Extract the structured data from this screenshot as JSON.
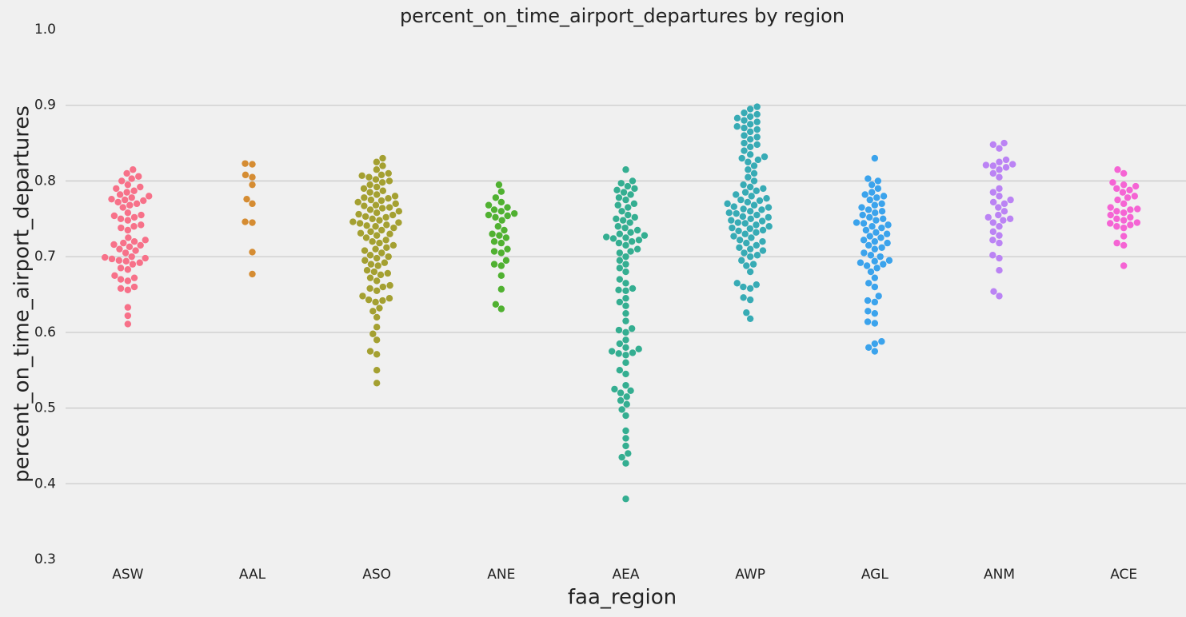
{
  "chart_data": {
    "type": "swarm",
    "title": "percent_on_time_airport_departures by region",
    "xlabel": "faa_region",
    "ylabel": "percent_on_time_airport_departures",
    "categories": [
      "ASW",
      "AAL",
      "ASO",
      "ANE",
      "AEA",
      "AWP",
      "AGL",
      "ANM",
      "ACE"
    ],
    "colors": [
      "#f77189",
      "#d58c32",
      "#a4a031",
      "#50b131",
      "#34ae91",
      "#37abb5",
      "#3ba3ec",
      "#bb83f4",
      "#f564d4"
    ],
    "values": [
      [
        0.611,
        0.622,
        0.633,
        0.656,
        0.658,
        0.66,
        0.668,
        0.67,
        0.672,
        0.675,
        0.683,
        0.685,
        0.69,
        0.692,
        0.694,
        0.695,
        0.697,
        0.698,
        0.699,
        0.7,
        0.705,
        0.708,
        0.71,
        0.713,
        0.715,
        0.716,
        0.718,
        0.72,
        0.722,
        0.725,
        0.735,
        0.738,
        0.74,
        0.742,
        0.748,
        0.75,
        0.752,
        0.754,
        0.755,
        0.758,
        0.765,
        0.768,
        0.77,
        0.772,
        0.774,
        0.775,
        0.776,
        0.778,
        0.78,
        0.782,
        0.785,
        0.787,
        0.79,
        0.792,
        0.795,
        0.8,
        0.803,
        0.806,
        0.81,
        0.815
      ],
      [
        0.677,
        0.706,
        0.745,
        0.746,
        0.77,
        0.776,
        0.795,
        0.805,
        0.808,
        0.822,
        0.823
      ],
      [
        0.533,
        0.55,
        0.571,
        0.575,
        0.59,
        0.598,
        0.607,
        0.62,
        0.628,
        0.632,
        0.64,
        0.642,
        0.643,
        0.645,
        0.648,
        0.655,
        0.658,
        0.66,
        0.662,
        0.668,
        0.672,
        0.676,
        0.678,
        0.68,
        0.682,
        0.688,
        0.69,
        0.692,
        0.695,
        0.698,
        0.7,
        0.702,
        0.705,
        0.708,
        0.71,
        0.712,
        0.715,
        0.718,
        0.72,
        0.722,
        0.725,
        0.728,
        0.73,
        0.731,
        0.733,
        0.735,
        0.738,
        0.74,
        0.741,
        0.742,
        0.744,
        0.745,
        0.746,
        0.748,
        0.75,
        0.752,
        0.753,
        0.755,
        0.756,
        0.758,
        0.76,
        0.762,
        0.764,
        0.765,
        0.767,
        0.768,
        0.77,
        0.772,
        0.774,
        0.775,
        0.777,
        0.778,
        0.78,
        0.782,
        0.785,
        0.787,
        0.79,
        0.792,
        0.795,
        0.798,
        0.8,
        0.802,
        0.805,
        0.807,
        0.808,
        0.81,
        0.815,
        0.82,
        0.825,
        0.83
      ],
      [
        0.631,
        0.637,
        0.657,
        0.675,
        0.688,
        0.69,
        0.695,
        0.705,
        0.707,
        0.71,
        0.718,
        0.72,
        0.725,
        0.728,
        0.73,
        0.735,
        0.74,
        0.748,
        0.752,
        0.754,
        0.755,
        0.757,
        0.76,
        0.762,
        0.765,
        0.768,
        0.772,
        0.778,
        0.786,
        0.795
      ],
      [
        0.38,
        0.427,
        0.435,
        0.44,
        0.45,
        0.46,
        0.47,
        0.49,
        0.498,
        0.505,
        0.51,
        0.515,
        0.52,
        0.523,
        0.525,
        0.53,
        0.545,
        0.55,
        0.56,
        0.57,
        0.572,
        0.573,
        0.575,
        0.578,
        0.58,
        0.585,
        0.59,
        0.6,
        0.603,
        0.605,
        0.615,
        0.625,
        0.635,
        0.64,
        0.645,
        0.655,
        0.656,
        0.658,
        0.665,
        0.67,
        0.68,
        0.685,
        0.69,
        0.695,
        0.7,
        0.705,
        0.707,
        0.71,
        0.715,
        0.718,
        0.72,
        0.722,
        0.724,
        0.725,
        0.726,
        0.728,
        0.73,
        0.732,
        0.735,
        0.738,
        0.74,
        0.745,
        0.748,
        0.75,
        0.752,
        0.755,
        0.76,
        0.765,
        0.768,
        0.77,
        0.775,
        0.778,
        0.782,
        0.785,
        0.788,
        0.79,
        0.793,
        0.797,
        0.8,
        0.815
      ],
      [
        0.618,
        0.626,
        0.643,
        0.646,
        0.658,
        0.66,
        0.663,
        0.665,
        0.68,
        0.688,
        0.69,
        0.695,
        0.7,
        0.702,
        0.705,
        0.708,
        0.71,
        0.712,
        0.715,
        0.718,
        0.72,
        0.722,
        0.725,
        0.727,
        0.73,
        0.732,
        0.734,
        0.735,
        0.737,
        0.738,
        0.74,
        0.742,
        0.744,
        0.745,
        0.747,
        0.748,
        0.75,
        0.752,
        0.753,
        0.755,
        0.757,
        0.758,
        0.76,
        0.762,
        0.763,
        0.765,
        0.766,
        0.768,
        0.77,
        0.772,
        0.774,
        0.775,
        0.777,
        0.78,
        0.782,
        0.785,
        0.787,
        0.79,
        0.792,
        0.795,
        0.8,
        0.805,
        0.81,
        0.815,
        0.82,
        0.825,
        0.828,
        0.83,
        0.832,
        0.835,
        0.84,
        0.845,
        0.848,
        0.85,
        0.855,
        0.858,
        0.86,
        0.865,
        0.868,
        0.87,
        0.872,
        0.875,
        0.878,
        0.88,
        0.883,
        0.885,
        0.888,
        0.89,
        0.895,
        0.898
      ],
      [
        0.575,
        0.58,
        0.585,
        0.588,
        0.612,
        0.614,
        0.625,
        0.628,
        0.64,
        0.642,
        0.648,
        0.66,
        0.665,
        0.672,
        0.68,
        0.685,
        0.688,
        0.69,
        0.692,
        0.694,
        0.695,
        0.7,
        0.702,
        0.705,
        0.71,
        0.712,
        0.715,
        0.718,
        0.72,
        0.722,
        0.725,
        0.727,
        0.73,
        0.732,
        0.735,
        0.738,
        0.74,
        0.742,
        0.744,
        0.745,
        0.748,
        0.75,
        0.752,
        0.755,
        0.758,
        0.76,
        0.762,
        0.765,
        0.768,
        0.77,
        0.775,
        0.778,
        0.78,
        0.782,
        0.785,
        0.79,
        0.795,
        0.8,
        0.803,
        0.83
      ],
      [
        0.648,
        0.654,
        0.682,
        0.698,
        0.702,
        0.718,
        0.722,
        0.728,
        0.733,
        0.74,
        0.745,
        0.748,
        0.75,
        0.752,
        0.755,
        0.76,
        0.765,
        0.77,
        0.772,
        0.775,
        0.78,
        0.785,
        0.79,
        0.805,
        0.81,
        0.815,
        0.818,
        0.82,
        0.821,
        0.822,
        0.825,
        0.828,
        0.843,
        0.848,
        0.85
      ],
      [
        0.688,
        0.715,
        0.718,
        0.727,
        0.738,
        0.74,
        0.742,
        0.744,
        0.745,
        0.748,
        0.75,
        0.752,
        0.755,
        0.758,
        0.76,
        0.762,
        0.763,
        0.765,
        0.77,
        0.775,
        0.778,
        0.78,
        0.785,
        0.788,
        0.79,
        0.793,
        0.795,
        0.798,
        0.81,
        0.815
      ]
    ],
    "ylim": [
      0.3,
      1.0
    ],
    "yticks": [
      0.3,
      0.4,
      0.5,
      0.6,
      0.7,
      0.8,
      0.9,
      {
        "value": 1.0,
        "label": "1.0"
      }
    ],
    "grid": true
  }
}
